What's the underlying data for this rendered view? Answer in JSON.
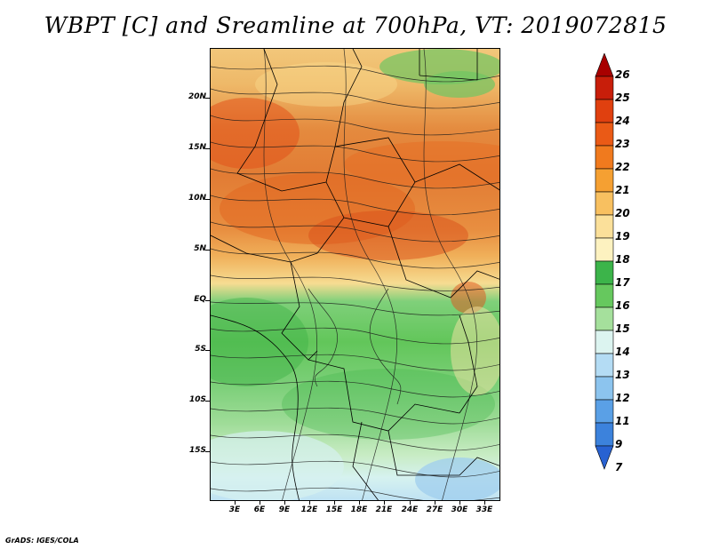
{
  "title": "WBPT [C] and Sreamline at 700hPa, VT: 2019072815",
  "credit": "GrADS: IGES/COLA",
  "map": {
    "lat_labels": [
      "20N",
      "15N",
      "10N",
      "5N",
      "EQ",
      "5S",
      "10S",
      "15S"
    ],
    "lon_labels": [
      "3E",
      "6E",
      "9E",
      "12E",
      "15E",
      "18E",
      "21E",
      "24E",
      "27E",
      "30E",
      "33E"
    ],
    "fields": [
      "WBPT",
      "streamlines"
    ]
  },
  "colorbar": {
    "labels": [
      "26",
      "25",
      "24",
      "23",
      "22",
      "21",
      "20",
      "19",
      "18",
      "17",
      "16",
      "15",
      "14",
      "13",
      "12",
      "11",
      "9",
      "7"
    ],
    "colors": [
      "#a80000",
      "#c81e0a",
      "#e0400f",
      "#ea5a16",
      "#f07a1e",
      "#f5a032",
      "#f8c060",
      "#fbe09a",
      "#fdf2c0",
      "#3cb44a",
      "#66c85e",
      "#a5e09c",
      "#dcf4f0",
      "#b4dcf4",
      "#8cc4ee",
      "#5aa0e6",
      "#3c82dc",
      "#2862d2"
    ]
  }
}
